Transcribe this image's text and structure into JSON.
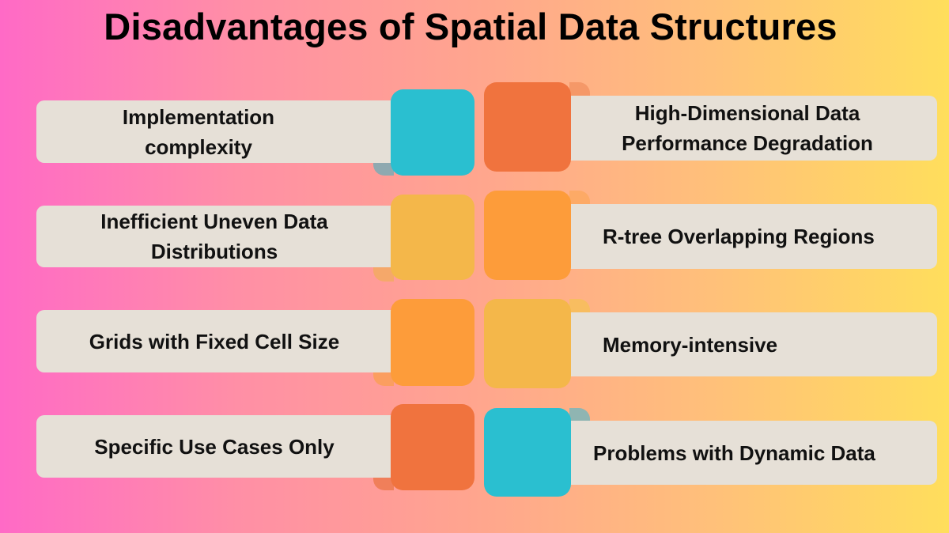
{
  "title": "Disadvantages of Spatial Data Structures",
  "colors": {
    "cyan": "#2abfd0",
    "red_orange": "#f0733e",
    "yellow": "#f4b74a",
    "orange": "#fd9c3a",
    "label_bg": "#e6e0d7"
  },
  "left_items": [
    {
      "label": "Implementation complexity",
      "color": "#2abfd0"
    },
    {
      "label": "Inefficient Uneven Data Distributions",
      "color": "#f4b74a"
    },
    {
      "label": "Grids with Fixed Cell Size",
      "color": "#fd9c3a"
    },
    {
      "label": "Specific Use Cases Only",
      "color": "#f0733e"
    }
  ],
  "right_items": [
    {
      "label": "High-Dimensional Data Performance Degradation",
      "color": "#f0733e"
    },
    {
      "label": "R-tree Overlapping Regions",
      "color": "#fd9c3a"
    },
    {
      "label": "Memory-intensive",
      "color": "#f4b74a"
    },
    {
      "label": "Problems with Dynamic Data",
      "color": "#2abfd0"
    }
  ]
}
